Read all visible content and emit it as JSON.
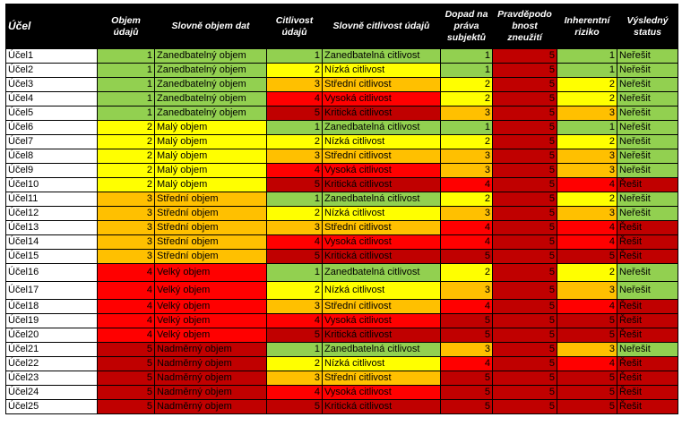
{
  "header": {
    "ucel": "Účel",
    "objem": "Objem údajů",
    "slovne_objem": "Slovně objem dat",
    "citlivost": "Citlivost údajů",
    "slovne_citlivost": "Slovně citlivost údajů",
    "dopad": "Dopad na práva subjektů",
    "pravdepodobnost": "Pravděpodo bnost zneužití",
    "riziko": "Inherentní riziko",
    "status": "Výsledný status"
  },
  "colors": {
    "green": "#92d050",
    "yellow": "#ffff00",
    "orange": "#ffc000",
    "red": "#ff0000",
    "dark_red": "#c00000",
    "header_bg": "#000000"
  },
  "rows": [
    {
      "ucel": "Účel1",
      "objem": "1",
      "slovne_objem": "Zanedbatelný objem",
      "citlivost": "1",
      "slovne_citlivost": "Zanedbatelná citlivost",
      "dopad": "1",
      "pravdepodobnost": "5",
      "riziko": "1",
      "status": "Neřešit"
    },
    {
      "ucel": "Účel2",
      "objem": "1",
      "slovne_objem": "Zanedbatelný objem",
      "citlivost": "2",
      "slovne_citlivost": "Nízká citlivost",
      "dopad": "1",
      "pravdepodobnost": "5",
      "riziko": "1",
      "status": "Neřešit"
    },
    {
      "ucel": "Účel3",
      "objem": "1",
      "slovne_objem": "Zanedbatelný objem",
      "citlivost": "3",
      "slovne_citlivost": "Střední citlivost",
      "dopad": "2",
      "pravdepodobnost": "5",
      "riziko": "2",
      "status": "Neřešit"
    },
    {
      "ucel": "Účel4",
      "objem": "1",
      "slovne_objem": "Zanedbatelný objem",
      "citlivost": "4",
      "slovne_citlivost": "Vysoká citlivost",
      "dopad": "2",
      "pravdepodobnost": "5",
      "riziko": "2",
      "status": "Neřešit"
    },
    {
      "ucel": "Účel5",
      "objem": "1",
      "slovne_objem": "Zanedbatelný objem",
      "citlivost": "5",
      "slovne_citlivost": "Kritická citlivost",
      "dopad": "3",
      "pravdepodobnost": "5",
      "riziko": "3",
      "status": "Neřešit"
    },
    {
      "ucel": "Účel6",
      "objem": "2",
      "slovne_objem": "Malý objem",
      "citlivost": "1",
      "slovne_citlivost": "Zanedbatelná citlivost",
      "dopad": "1",
      "pravdepodobnost": "5",
      "riziko": "1",
      "status": "Neřešit"
    },
    {
      "ucel": "Účel7",
      "objem": "2",
      "slovne_objem": "Malý objem",
      "citlivost": "2",
      "slovne_citlivost": "Nízká citlivost",
      "dopad": "2",
      "pravdepodobnost": "5",
      "riziko": "2",
      "status": "Neřešit"
    },
    {
      "ucel": "Účel8",
      "objem": "2",
      "slovne_objem": "Malý objem",
      "citlivost": "3",
      "slovne_citlivost": "Střední citlivost",
      "dopad": "3",
      "pravdepodobnost": "5",
      "riziko": "3",
      "status": "Neřešit"
    },
    {
      "ucel": "Účel9",
      "objem": "2",
      "slovne_objem": "Malý objem",
      "citlivost": "4",
      "slovne_citlivost": "Vysoká citlivost",
      "dopad": "3",
      "pravdepodobnost": "5",
      "riziko": "3",
      "status": "Neřešit"
    },
    {
      "ucel": "Účel10",
      "objem": "2",
      "slovne_objem": "Malý objem",
      "citlivost": "5",
      "slovne_citlivost": "Kritická citlivost",
      "dopad": "4",
      "pravdepodobnost": "5",
      "riziko": "4",
      "status": "Řešit"
    },
    {
      "ucel": "Účel11",
      "objem": "3",
      "slovne_objem": "Střední objem",
      "citlivost": "1",
      "slovne_citlivost": "Zanedbatelná citlivost",
      "dopad": "2",
      "pravdepodobnost": "5",
      "riziko": "2",
      "status": "Neřešit"
    },
    {
      "ucel": "Účel12",
      "objem": "3",
      "slovne_objem": "Střední objem",
      "citlivost": "2",
      "slovne_citlivost": "Nízká citlivost",
      "dopad": "3",
      "pravdepodobnost": "5",
      "riziko": "3",
      "status": "Neřešit"
    },
    {
      "ucel": "Účel13",
      "objem": "3",
      "slovne_objem": "Střední objem",
      "citlivost": "3",
      "slovne_citlivost": "Střední citlivost",
      "dopad": "4",
      "pravdepodobnost": "5",
      "riziko": "4",
      "status": "Řešit"
    },
    {
      "ucel": "Účel14",
      "objem": "3",
      "slovne_objem": "Střední objem",
      "citlivost": "4",
      "slovne_citlivost": "Vysoká citlivost",
      "dopad": "4",
      "pravdepodobnost": "5",
      "riziko": "4",
      "status": "Řešit"
    },
    {
      "ucel": "Účel15",
      "objem": "3",
      "slovne_objem": "Střední objem",
      "citlivost": "5",
      "slovne_citlivost": "Kritická citlivost",
      "dopad": "5",
      "pravdepodobnost": "5",
      "riziko": "5",
      "status": "Řešit"
    },
    {
      "ucel": "Účel16",
      "objem": "4",
      "slovne_objem": "Velký objem",
      "citlivost": "1",
      "slovne_citlivost": "Zanedbatelná citlivost",
      "dopad": "2",
      "pravdepodobnost": "5",
      "riziko": "2",
      "status": "Neřešit",
      "tall": true
    },
    {
      "ucel": "Účel17",
      "objem": "4",
      "slovne_objem": "Velký objem",
      "citlivost": "2",
      "slovne_citlivost": "Nízká citlivost",
      "dopad": "3",
      "pravdepodobnost": "5",
      "riziko": "3",
      "status": "Neřešit",
      "tall": true
    },
    {
      "ucel": "Účel18",
      "objem": "4",
      "slovne_objem": "Velký objem",
      "citlivost": "3",
      "slovne_citlivost": "Střední citlivost",
      "dopad": "4",
      "pravdepodobnost": "5",
      "riziko": "4",
      "status": "Řešit"
    },
    {
      "ucel": "Účel19",
      "objem": "4",
      "slovne_objem": "Velký objem",
      "citlivost": "4",
      "slovne_citlivost": "Vysoká citlivost",
      "dopad": "5",
      "pravdepodobnost": "5",
      "riziko": "5",
      "status": "Řešit"
    },
    {
      "ucel": "Účel20",
      "objem": "4",
      "slovne_objem": "Velký objem",
      "citlivost": "5",
      "slovne_citlivost": "Kritická citlivost",
      "dopad": "5",
      "pravdepodobnost": "5",
      "riziko": "5",
      "status": "Řešit"
    },
    {
      "ucel": "Účel21",
      "objem": "5",
      "slovne_objem": "Nadměrný objem",
      "citlivost": "1",
      "slovne_citlivost": "Zanedbatelná citlivost",
      "dopad": "3",
      "pravdepodobnost": "5",
      "riziko": "3",
      "status": "Neřešit"
    },
    {
      "ucel": "Účel22",
      "objem": "5",
      "slovne_objem": "Nadměrný objem",
      "citlivost": "2",
      "slovne_citlivost": "Nízká citlivost",
      "dopad": "4",
      "pravdepodobnost": "5",
      "riziko": "4",
      "status": "Řešit"
    },
    {
      "ucel": "Účel23",
      "objem": "5",
      "slovne_objem": "Nadměrný objem",
      "citlivost": "3",
      "slovne_citlivost": "Střední citlivost",
      "dopad": "5",
      "pravdepodobnost": "5",
      "riziko": "5",
      "status": "Řešit"
    },
    {
      "ucel": "Účel24",
      "objem": "5",
      "slovne_objem": "Nadměrný objem",
      "citlivost": "4",
      "slovne_citlivost": "Vysoká citlivost",
      "dopad": "5",
      "pravdepodobnost": "5",
      "riziko": "5",
      "status": "Řešit"
    },
    {
      "ucel": "Účel25",
      "objem": "5",
      "slovne_objem": "Nadměrný objem",
      "citlivost": "5",
      "slovne_citlivost": "Kritická citlivost",
      "dopad": "5",
      "pravdepodobnost": "5",
      "riziko": "5",
      "status": "Řešit"
    }
  ]
}
